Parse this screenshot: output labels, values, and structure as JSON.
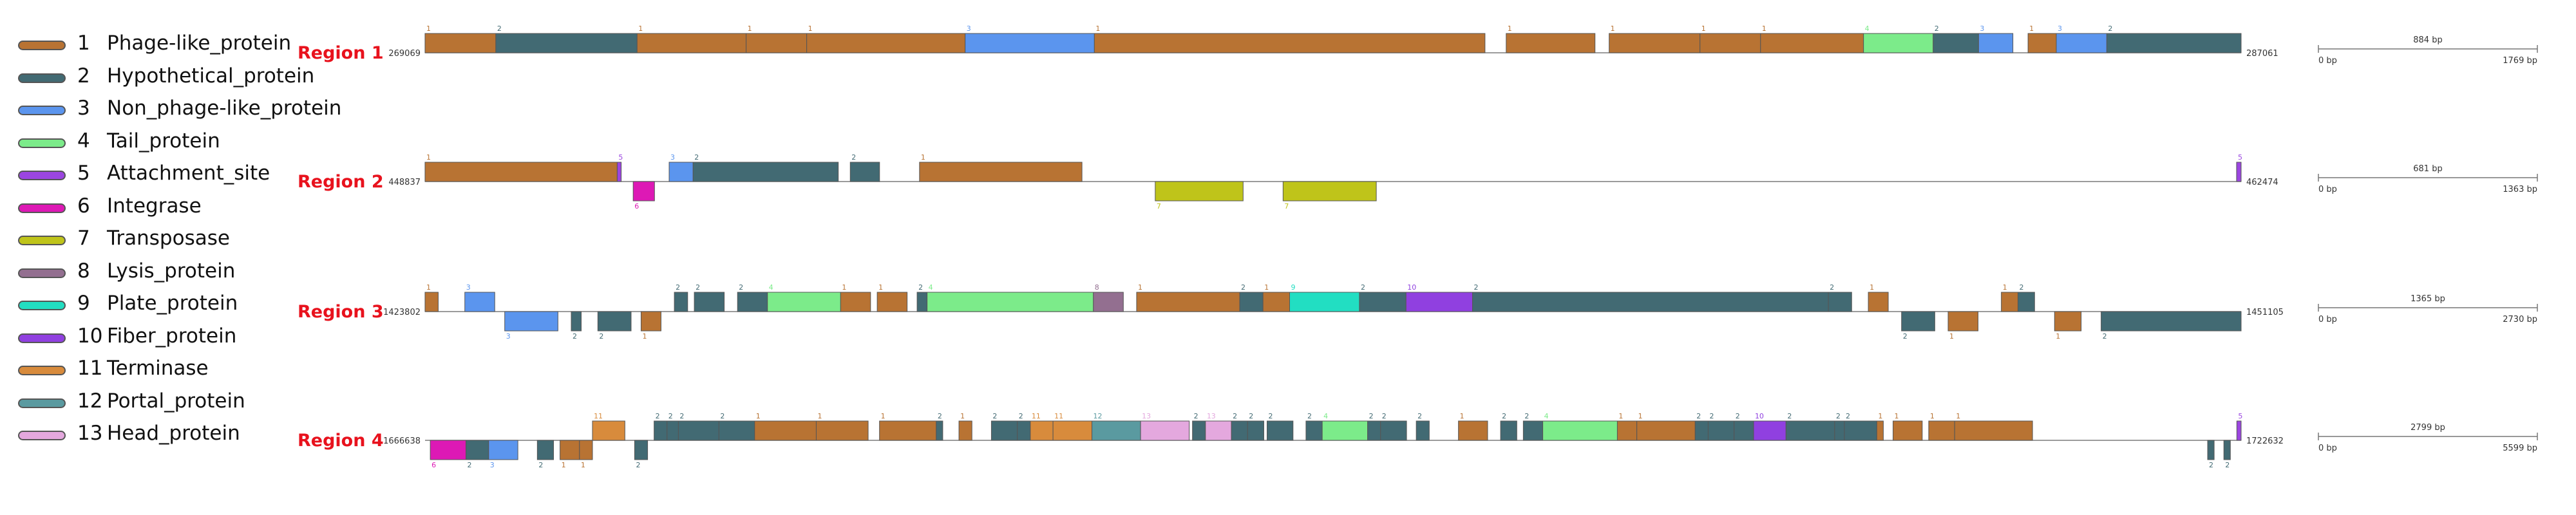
{
  "legend": [
    {
      "num": "1",
      "label": "Phage-like_protein",
      "color": "#b87333"
    },
    {
      "num": "2",
      "label": "Hypothetical_protein",
      "color": "#426a73"
    },
    {
      "num": "3",
      "label": "Non_phage-like_protein",
      "color": "#5b95ee"
    },
    {
      "num": "4",
      "label": "Tail_protein",
      "color": "#7ceb8a"
    },
    {
      "num": "5",
      "label": "Attachment_site",
      "color": "#9b45e0"
    },
    {
      "num": "6",
      "label": "Integrase",
      "color": "#dd19b5"
    },
    {
      "num": "7",
      "label": "Transposase",
      "color": "#bfc41a"
    },
    {
      "num": "8",
      "label": "Lysis_protein",
      "color": "#936f90"
    },
    {
      "num": "9",
      "label": "Plate_protein",
      "color": "#22dec2"
    },
    {
      "num": "10",
      "label": "Fiber_protein",
      "color": "#9040e0"
    },
    {
      "num": "11",
      "label": "Terminase",
      "color": "#d88b3c"
    },
    {
      "num": "12",
      "label": "Portal_protein",
      "color": "#5a9aa0"
    },
    {
      "num": "13",
      "label": "Head_protein",
      "color": "#e4a8de"
    }
  ],
  "regions": [
    {
      "name": "Region 1",
      "start": "269069",
      "end": "287061",
      "span": [
        269069,
        287061
      ],
      "scale": {
        "label": "884 bp",
        "left": "0 bp",
        "right": "1769 bp"
      },
      "genes": [
        {
          "t": 1,
          "s": 269069,
          "e": 269770,
          "strand": "+"
        },
        {
          "t": 2,
          "s": 269770,
          "e": 271170,
          "strand": "+"
        },
        {
          "t": 1,
          "s": 271170,
          "e": 272250,
          "strand": "+"
        },
        {
          "t": 1,
          "s": 272250,
          "e": 272850,
          "strand": "+"
        },
        {
          "t": 1,
          "s": 272850,
          "e": 274420,
          "strand": "+"
        },
        {
          "t": 3,
          "s": 274420,
          "e": 275700,
          "strand": "+"
        },
        {
          "t": 1,
          "s": 275700,
          "e": 279570,
          "strand": "+"
        },
        {
          "t": 1,
          "s": 279780,
          "e": 280660,
          "strand": "+"
        },
        {
          "t": 1,
          "s": 280800,
          "e": 281700,
          "strand": "+"
        },
        {
          "t": 1,
          "s": 281700,
          "e": 282300,
          "strand": "+"
        },
        {
          "t": 1,
          "s": 282300,
          "e": 283320,
          "strand": "+"
        },
        {
          "t": 4,
          "s": 283320,
          "e": 284010,
          "strand": "+"
        },
        {
          "t": 2,
          "s": 284010,
          "e": 284460,
          "strand": "+"
        },
        {
          "t": 3,
          "s": 284460,
          "e": 284800,
          "strand": "+"
        },
        {
          "t": 1,
          "s": 284950,
          "e": 285230,
          "strand": "+"
        },
        {
          "t": 3,
          "s": 285230,
          "e": 285730,
          "strand": "+"
        },
        {
          "t": 2,
          "s": 285730,
          "e": 287061,
          "strand": "+"
        }
      ]
    },
    {
      "name": "Region 2",
      "start": "448837",
      "end": "462474",
      "span": [
        448837,
        462474
      ],
      "scale": {
        "label": "681 bp",
        "left": "0 bp",
        "right": "1363 bp"
      },
      "genes": [
        {
          "t": 1,
          "s": 448837,
          "e": 450280,
          "strand": "+"
        },
        {
          "t": 5,
          "s": 450280,
          "e": 450310,
          "strand": "+"
        },
        {
          "t": 6,
          "s": 450400,
          "e": 450560,
          "strand": "-"
        },
        {
          "t": 3,
          "s": 450670,
          "e": 450850,
          "strand": "+"
        },
        {
          "t": 2,
          "s": 450850,
          "e": 451940,
          "strand": "+"
        },
        {
          "t": 2,
          "s": 452030,
          "e": 452250,
          "strand": "+"
        },
        {
          "t": 1,
          "s": 452550,
          "e": 453770,
          "strand": "+"
        },
        {
          "t": 7,
          "s": 454320,
          "e": 454980,
          "strand": "-"
        },
        {
          "t": 7,
          "s": 455280,
          "e": 455980,
          "strand": "-"
        },
        {
          "t": 5,
          "s": 462440,
          "e": 462474,
          "strand": "+"
        }
      ]
    },
    {
      "name": "Region 3",
      "start": "1423802",
      "end": "1451105",
      "span": [
        1423802,
        1451105
      ],
      "scale": {
        "label": "1365 bp",
        "left": "0 bp",
        "right": "2730 bp"
      },
      "genes": [
        {
          "t": 1,
          "s": 1423802,
          "e": 1424000,
          "strand": "+"
        },
        {
          "t": 3,
          "s": 1424400,
          "e": 1424850,
          "strand": "+"
        },
        {
          "t": 3,
          "s": 1425000,
          "e": 1425800,
          "strand": "-"
        },
        {
          "t": 2,
          "s": 1426000,
          "e": 1426150,
          "strand": "-"
        },
        {
          "t": 2,
          "s": 1426400,
          "e": 1426900,
          "strand": "-"
        },
        {
          "t": 1,
          "s": 1427050,
          "e": 1427350,
          "strand": "-"
        },
        {
          "t": 2,
          "s": 1427550,
          "e": 1427750,
          "strand": "+"
        },
        {
          "t": 2,
          "s": 1427850,
          "e": 1428300,
          "strand": "+"
        },
        {
          "t": 2,
          "s": 1428500,
          "e": 1428950,
          "strand": "+"
        },
        {
          "t": 4,
          "s": 1428950,
          "e": 1430050,
          "strand": "+"
        },
        {
          "t": 1,
          "s": 1430050,
          "e": 1430500,
          "strand": "+"
        },
        {
          "t": 1,
          "s": 1430600,
          "e": 1431050,
          "strand": "+"
        },
        {
          "t": 2,
          "s": 1431200,
          "e": 1431350,
          "strand": "+"
        },
        {
          "t": 4,
          "s": 1431350,
          "e": 1433850,
          "strand": "+"
        },
        {
          "t": 8,
          "s": 1433850,
          "e": 1434300,
          "strand": "+"
        },
        {
          "t": 1,
          "s": 1434500,
          "e": 1436050,
          "strand": "+"
        },
        {
          "t": 2,
          "s": 1436050,
          "e": 1436400,
          "strand": "+"
        },
        {
          "t": 1,
          "s": 1436400,
          "e": 1436800,
          "strand": "+"
        },
        {
          "t": 9,
          "s": 1436800,
          "e": 1437850,
          "strand": "+"
        },
        {
          "t": 2,
          "s": 1437850,
          "e": 1438550,
          "strand": "+"
        },
        {
          "t": 10,
          "s": 1438550,
          "e": 1439550,
          "strand": "+"
        },
        {
          "t": 2,
          "s": 1439550,
          "e": 1444900,
          "strand": "+"
        },
        {
          "t": 2,
          "s": 1444900,
          "e": 1445250,
          "strand": "+"
        },
        {
          "t": 1,
          "s": 1445500,
          "e": 1445800,
          "strand": "+"
        },
        {
          "t": 2,
          "s": 1446000,
          "e": 1446500,
          "strand": "-"
        },
        {
          "t": 1,
          "s": 1446700,
          "e": 1447150,
          "strand": "-"
        },
        {
          "t": 1,
          "s": 1447500,
          "e": 1447750,
          "strand": "+"
        },
        {
          "t": 2,
          "s": 1447750,
          "e": 1448000,
          "strand": "+"
        },
        {
          "t": 1,
          "s": 1448300,
          "e": 1448700,
          "strand": "-"
        },
        {
          "t": 2,
          "s": 1449000,
          "e": 1451105,
          "strand": "-"
        }
      ]
    },
    {
      "name": "Region 4",
      "start": "1666638",
      "end": "1722632",
      "span": [
        1666638,
        1722632
      ],
      "scale": {
        "label": "2799 bp",
        "left": "0 bp",
        "right": "5599 bp"
      },
      "genes": [
        {
          "t": 6,
          "s": 1666800,
          "e": 1667900,
          "strand": "-"
        },
        {
          "t": 2,
          "s": 1667900,
          "e": 1668600,
          "strand": "-"
        },
        {
          "t": 3,
          "s": 1668600,
          "e": 1669500,
          "strand": "-"
        },
        {
          "t": 2,
          "s": 1670100,
          "e": 1670600,
          "strand": "-"
        },
        {
          "t": 1,
          "s": 1670800,
          "e": 1671400,
          "strand": "-"
        },
        {
          "t": 1,
          "s": 1671400,
          "e": 1671800,
          "strand": "-"
        },
        {
          "t": 11,
          "s": 1671800,
          "e": 1672800,
          "strand": "+"
        },
        {
          "t": 2,
          "s": 1673100,
          "e": 1673500,
          "strand": "-"
        },
        {
          "t": 2,
          "s": 1673700,
          "e": 1674100,
          "strand": "+"
        },
        {
          "t": 2,
          "s": 1674100,
          "e": 1674450,
          "strand": "+"
        },
        {
          "t": 2,
          "s": 1674450,
          "e": 1675700,
          "strand": "+"
        },
        {
          "t": 2,
          "s": 1675700,
          "e": 1676800,
          "strand": "+"
        },
        {
          "t": 1,
          "s": 1676800,
          "e": 1678700,
          "strand": "+"
        },
        {
          "t": 1,
          "s": 1678700,
          "e": 1680300,
          "strand": "+"
        },
        {
          "t": 1,
          "s": 1680650,
          "e": 1682400,
          "strand": "+"
        },
        {
          "t": 2,
          "s": 1682400,
          "e": 1682600,
          "strand": "+"
        },
        {
          "t": 1,
          "s": 1683100,
          "e": 1683500,
          "strand": "+"
        },
        {
          "t": 2,
          "s": 1684100,
          "e": 1684900,
          "strand": "+"
        },
        {
          "t": 2,
          "s": 1684900,
          "e": 1685300,
          "strand": "+"
        },
        {
          "t": 11,
          "s": 1685300,
          "e": 1686000,
          "strand": "+"
        },
        {
          "t": 11,
          "s": 1686000,
          "e": 1687200,
          "strand": "+"
        },
        {
          "t": 12,
          "s": 1687200,
          "e": 1688700,
          "strand": "+"
        },
        {
          "t": 13,
          "s": 1688700,
          "e": 1690200,
          "strand": "+"
        },
        {
          "t": 2,
          "s": 1690300,
          "e": 1690700,
          "strand": "+"
        },
        {
          "t": 13,
          "s": 1690700,
          "e": 1691500,
          "strand": "+"
        },
        {
          "t": 2,
          "s": 1691500,
          "e": 1692000,
          "strand": "+"
        },
        {
          "t": 2,
          "s": 1692000,
          "e": 1692500,
          "strand": "+"
        },
        {
          "t": 2,
          "s": 1692600,
          "e": 1693400,
          "strand": "+"
        },
        {
          "t": 2,
          "s": 1693800,
          "e": 1694300,
          "strand": "+"
        },
        {
          "t": 4,
          "s": 1694300,
          "e": 1695700,
          "strand": "+"
        },
        {
          "t": 2,
          "s": 1695700,
          "e": 1696100,
          "strand": "+"
        },
        {
          "t": 2,
          "s": 1696100,
          "e": 1696900,
          "strand": "+"
        },
        {
          "t": 2,
          "s": 1697200,
          "e": 1697600,
          "strand": "+"
        },
        {
          "t": 1,
          "s": 1698500,
          "e": 1699400,
          "strand": "+"
        },
        {
          "t": 2,
          "s": 1699800,
          "e": 1700300,
          "strand": "+"
        },
        {
          "t": 2,
          "s": 1700500,
          "e": 1701100,
          "strand": "+"
        },
        {
          "t": 4,
          "s": 1701100,
          "e": 1703400,
          "strand": "+"
        },
        {
          "t": 1,
          "s": 1703400,
          "e": 1704000,
          "strand": "+"
        },
        {
          "t": 1,
          "s": 1704000,
          "e": 1705800,
          "strand": "+"
        },
        {
          "t": 2,
          "s": 1705800,
          "e": 1706200,
          "strand": "+"
        },
        {
          "t": 2,
          "s": 1706200,
          "e": 1707000,
          "strand": "+"
        },
        {
          "t": 2,
          "s": 1707000,
          "e": 1707600,
          "strand": "+"
        },
        {
          "t": 10,
          "s": 1707600,
          "e": 1708600,
          "strand": "+"
        },
        {
          "t": 2,
          "s": 1708600,
          "e": 1710100,
          "strand": "+"
        },
        {
          "t": 2,
          "s": 1710100,
          "e": 1710400,
          "strand": "+"
        },
        {
          "t": 2,
          "s": 1710400,
          "e": 1711400,
          "strand": "+"
        },
        {
          "t": 1,
          "s": 1711400,
          "e": 1711600,
          "strand": "+"
        },
        {
          "t": 1,
          "s": 1711900,
          "e": 1712800,
          "strand": "+"
        },
        {
          "t": 1,
          "s": 1713000,
          "e": 1713800,
          "strand": "+"
        },
        {
          "t": 1,
          "s": 1713800,
          "e": 1716200,
          "strand": "+"
        },
        {
          "t": 2,
          "s": 1721600,
          "e": 1721800,
          "strand": "-"
        },
        {
          "t": 2,
          "s": 1722100,
          "e": 1722300,
          "strand": "-"
        },
        {
          "t": 5,
          "s": 1722500,
          "e": 1722632,
          "strand": "+"
        }
      ]
    }
  ]
}
